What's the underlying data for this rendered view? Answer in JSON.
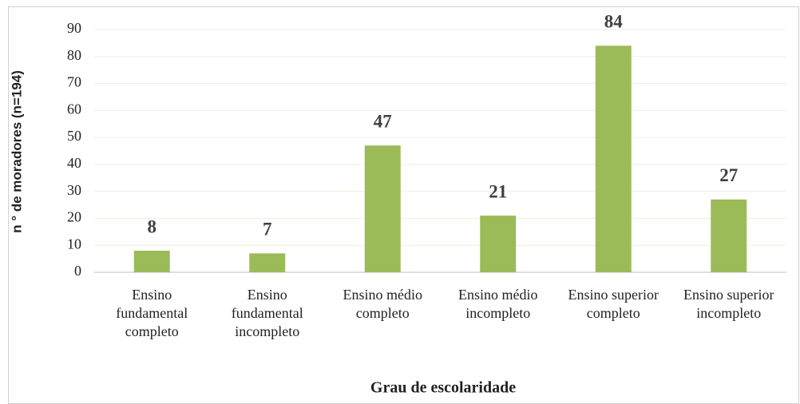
{
  "chart_data": {
    "type": "bar",
    "categories": [
      "Ensino fundamental completo",
      "Ensino fundamental incompleto",
      "Ensino médio completo",
      "Ensino médio incompleto",
      "Ensino superior completo",
      "Ensino superior incompleto"
    ],
    "values": [
      8,
      7,
      47,
      21,
      84,
      27
    ],
    "color": "#9bbb59",
    "ylim": [
      0,
      90
    ],
    "yticks": [
      0,
      10,
      20,
      30,
      40,
      50,
      60,
      70,
      80,
      90
    ],
    "grid": true,
    "ylabel": "n ° de moradores (n=194)",
    "xlabel": "Grau de escolaridade"
  }
}
